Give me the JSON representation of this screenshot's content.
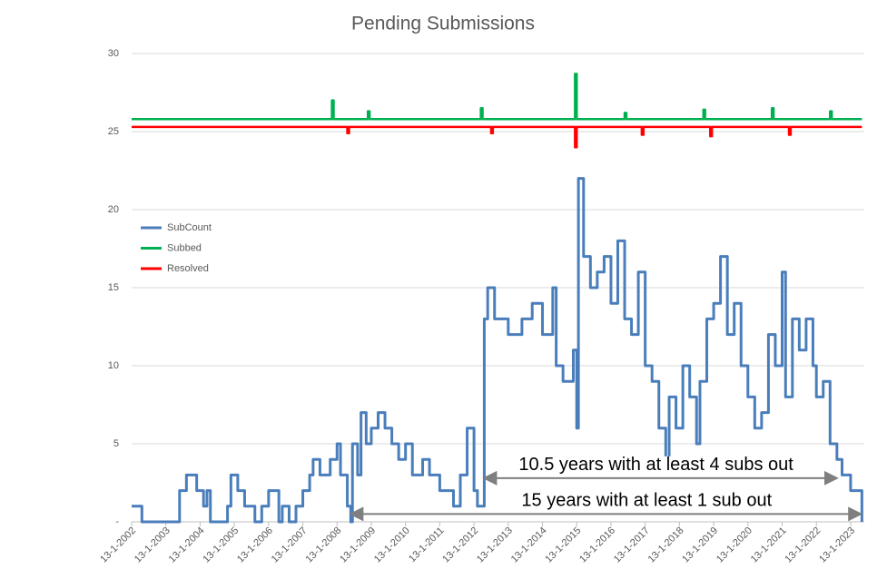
{
  "chart_data": {
    "type": "step-line",
    "title": "Pending Submissions",
    "xlim": [
      2002,
      2023.4
    ],
    "ylim": [
      0,
      30
    ],
    "xticks": [
      {
        "value": 2002,
        "label": "13-1-2002"
      },
      {
        "value": 2003,
        "label": "13-1-2003"
      },
      {
        "value": 2004,
        "label": "13-1-2004"
      },
      {
        "value": 2005,
        "label": "13-1-2005"
      },
      {
        "value": 2006,
        "label": "13-1-2006"
      },
      {
        "value": 2007,
        "label": "13-1-2007"
      },
      {
        "value": 2008,
        "label": "13-1-2008"
      },
      {
        "value": 2009,
        "label": "13-1-2009"
      },
      {
        "value": 2010,
        "label": "13-1-2010"
      },
      {
        "value": 2011,
        "label": "13-1-2011"
      },
      {
        "value": 2012,
        "label": "13-1-2012"
      },
      {
        "value": 2013,
        "label": "13-1-2013"
      },
      {
        "value": 2014,
        "label": "13-1-2014"
      },
      {
        "value": 2015,
        "label": "13-1-2015"
      },
      {
        "value": 2016,
        "label": "13-1-2016"
      },
      {
        "value": 2017,
        "label": "13-1-2017"
      },
      {
        "value": 2018,
        "label": "13-1-2018"
      },
      {
        "value": 2019,
        "label": "13-1-2019"
      },
      {
        "value": 2020,
        "label": "13-1-2020"
      },
      {
        "value": 2021,
        "label": "13-1-2021"
      },
      {
        "value": 2022,
        "label": "13-1-2022"
      },
      {
        "value": 2023,
        "label": "13-1-2023"
      }
    ],
    "yticks": [
      {
        "value": 0,
        "label": "-"
      },
      5,
      10,
      15,
      20,
      25,
      30
    ],
    "grid": true,
    "series": [
      {
        "name": "SubCount",
        "color": "#4a7ebb",
        "x": [
          2002.0,
          2002.3,
          2003.4,
          2003.6,
          2003.9,
          2004.1,
          2004.2,
          2004.3,
          2004.8,
          2004.9,
          2005.1,
          2005.3,
          2005.6,
          2005.8,
          2006.0,
          2006.3,
          2006.4,
          2006.6,
          2006.8,
          2007.0,
          2007.2,
          2007.3,
          2007.5,
          2007.8,
          2008.0,
          2008.1,
          2008.3,
          2008.4,
          2008.45,
          2008.6,
          2008.7,
          2008.85,
          2009.0,
          2009.2,
          2009.4,
          2009.6,
          2009.8,
          2010.0,
          2010.2,
          2010.5,
          2010.7,
          2011.0,
          2011.4,
          2011.6,
          2011.8,
          2012.0,
          2012.1,
          2012.3,
          2012.4,
          2012.6,
          2013.0,
          2013.4,
          2013.7,
          2014.0,
          2014.3,
          2014.4,
          2014.6,
          2014.9,
          2015.0,
          2015.05,
          2015.2,
          2015.4,
          2015.6,
          2015.8,
          2016.0,
          2016.2,
          2016.4,
          2016.6,
          2016.8,
          2017.0,
          2017.2,
          2017.4,
          2017.6,
          2017.7,
          2017.9,
          2018.1,
          2018.3,
          2018.5,
          2018.6,
          2018.8,
          2019.0,
          2019.2,
          2019.4,
          2019.6,
          2019.8,
          2020.0,
          2020.2,
          2020.4,
          2020.6,
          2020.8,
          2021.0,
          2021.1,
          2021.3,
          2021.5,
          2021.7,
          2021.9,
          2022.0,
          2022.2,
          2022.4,
          2022.6,
          2022.75,
          2023.0,
          2023.33
        ],
        "values": [
          1,
          0,
          2,
          3,
          2,
          1,
          2,
          0,
          1,
          3,
          2,
          1,
          0,
          1,
          2,
          0,
          1,
          0,
          1,
          2,
          3,
          4,
          3,
          4,
          5,
          3,
          1,
          0,
          5,
          3,
          7,
          5,
          6,
          7,
          6,
          5,
          4,
          5,
          3,
          4,
          3,
          2,
          1,
          3,
          6,
          2,
          1,
          13,
          15,
          13,
          12,
          13,
          14,
          12,
          15,
          10,
          9,
          11,
          6,
          22,
          17,
          15,
          16,
          17,
          14,
          18,
          13,
          12,
          16,
          10,
          9,
          6,
          4,
          8,
          6,
          10,
          8,
          5,
          9,
          13,
          14,
          17,
          12,
          14,
          10,
          8,
          6,
          7,
          12,
          10,
          16,
          8,
          13,
          11,
          13,
          10,
          8,
          9,
          5,
          4,
          3,
          2,
          0
        ]
      },
      {
        "name": "Subbed",
        "color": "#00b050",
        "x": [
          2002.0,
          2007.85,
          2007.9,
          2008.9,
          2008.95,
          2012.2,
          2012.25,
          2014.95,
          2015.0,
          2016.4,
          2016.45,
          2018.7,
          2018.75,
          2020.7,
          2020.75,
          2022.4,
          2022.45,
          2023.33
        ],
        "values": [
          25.8,
          27,
          25.8,
          26.3,
          25.8,
          26.5,
          25.8,
          28.7,
          25.8,
          26.2,
          25.8,
          26.4,
          25.8,
          26.5,
          25.8,
          26.3,
          25.8,
          25.8
        ]
      },
      {
        "name": "Resolved",
        "color": "#ff0000",
        "x": [
          2002.0,
          2008.3,
          2008.35,
          2012.5,
          2012.55,
          2014.95,
          2015.0,
          2016.9,
          2016.95,
          2018.9,
          2018.95,
          2021.2,
          2021.25,
          2023.33
        ],
        "values": [
          25.3,
          24.9,
          25.3,
          24.9,
          25.3,
          24.0,
          25.3,
          24.8,
          25.3,
          24.7,
          25.3,
          24.8,
          25.3,
          25.3
        ]
      }
    ],
    "annotations": [
      {
        "text": "10.5 years with at least 4 subs out",
        "x": [
          2012.3,
          2022.6
        ],
        "y": 2.8
      },
      {
        "text": "15 years with at least 1 sub out",
        "x": [
          2008.4,
          2023.3
        ],
        "y": 0.5
      }
    ]
  }
}
